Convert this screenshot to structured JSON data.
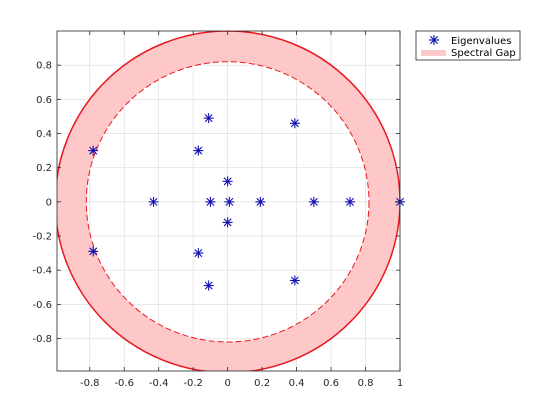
{
  "chart_data": {
    "type": "scatter",
    "title": "",
    "xlabel": "",
    "ylabel": "",
    "xlim": [
      -0.99,
      1.0
    ],
    "ylim": [
      -0.99,
      1.0
    ],
    "grid": true,
    "legend_placement": "outside-top-right",
    "x_ticks": [
      -0.8,
      -0.6,
      -0.4,
      -0.2,
      0,
      0.2,
      0.4,
      0.6,
      0.8,
      1
    ],
    "x_tick_labels": [
      "-0.8",
      "-0.6",
      "-0.4",
      "-0.2",
      "0",
      "0.2",
      "0.4",
      "0.6",
      "0.8",
      "1"
    ],
    "y_ticks": [
      0.8,
      0.6,
      0.4,
      0.2,
      0,
      -0.2,
      -0.4,
      -0.6,
      -0.8
    ],
    "y_tick_labels": [
      "0.8",
      "0.6",
      "0.4",
      "0.2",
      "0",
      "-0.2",
      "-0.4",
      "-0.6",
      "-0.8"
    ],
    "spectral_gap": {
      "name": "Spectral Gap",
      "outer_radius": 1.0,
      "inner_radius": 0.82,
      "fill_color": "#ffc8c8",
      "edge_color": "#e8191e"
    },
    "series": [
      {
        "name": "Eigenvalues",
        "marker": "asterisk",
        "color": "#1010b0",
        "points": [
          {
            "x": 1.0,
            "y": 0.0
          },
          {
            "x": 0.71,
            "y": 0.0
          },
          {
            "x": 0.5,
            "y": 0.0
          },
          {
            "x": 0.19,
            "y": 0.0
          },
          {
            "x": 0.01,
            "y": 0.0
          },
          {
            "x": 0.0,
            "y": 0.12
          },
          {
            "x": 0.0,
            "y": -0.12
          },
          {
            "x": -0.1,
            "y": 0.0
          },
          {
            "x": -0.43,
            "y": 0.0
          },
          {
            "x": 0.39,
            "y": 0.46
          },
          {
            "x": 0.39,
            "y": -0.46
          },
          {
            "x": -0.11,
            "y": 0.49
          },
          {
            "x": -0.11,
            "y": -0.49
          },
          {
            "x": -0.17,
            "y": 0.3
          },
          {
            "x": -0.17,
            "y": -0.3
          },
          {
            "x": -0.78,
            "y": 0.3
          },
          {
            "x": -0.78,
            "y": -0.29
          }
        ]
      }
    ],
    "legend": [
      {
        "label": "Eigenvalues",
        "kind": "marker"
      },
      {
        "label": "Spectral Gap",
        "kind": "patch"
      }
    ]
  }
}
